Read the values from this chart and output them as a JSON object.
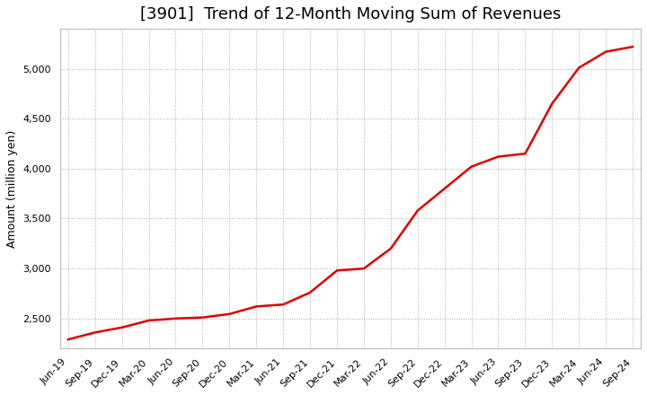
{
  "title": "[3901]  Trend of 12-Month Moving Sum of Revenues",
  "ylabel": "Amount (million yen)",
  "background_color": "#ffffff",
  "plot_bg_color": "#ffffff",
  "grid_color": "#aaaaaa",
  "line_color": "#dd0000",
  "x_labels": [
    "Jun-19",
    "Sep-19",
    "Dec-19",
    "Mar-20",
    "Jun-20",
    "Sep-20",
    "Dec-20",
    "Mar-21",
    "Jun-21",
    "Sep-21",
    "Dec-21",
    "Mar-22",
    "Jun-22",
    "Sep-22",
    "Dec-22",
    "Mar-23",
    "Jun-23",
    "Sep-23",
    "Dec-23",
    "Mar-24",
    "Jun-24",
    "Sep-24"
  ],
  "y_values": [
    2290,
    2360,
    2410,
    2480,
    2500,
    2510,
    2545,
    2620,
    2640,
    2760,
    2980,
    3000,
    3200,
    3580,
    3800,
    4020,
    4120,
    4150,
    4650,
    5010,
    5170,
    5220
  ],
  "ylim": [
    2200,
    5400
  ],
  "yticks": [
    2500,
    3000,
    3500,
    4000,
    4500,
    5000
  ],
  "title_fontsize": 13,
  "label_fontsize": 9,
  "tick_fontsize": 8
}
